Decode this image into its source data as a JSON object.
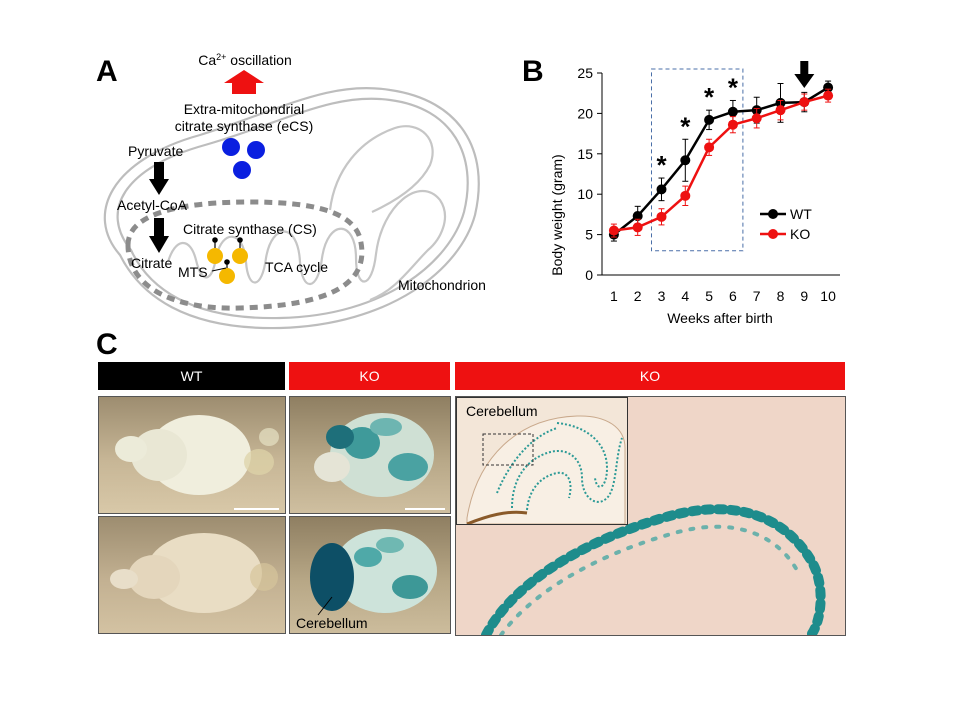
{
  "panels": {
    "a": "A",
    "b": "B",
    "c": "C"
  },
  "diagram": {
    "ca_prefix": "Ca",
    "ca_sup": "2+",
    "ca_suffix": " oscillation",
    "ecs_line1": "Extra-mitochondrial",
    "ecs_line2": "citrate synthase (eCS)",
    "pyruvate": "Pyruvate",
    "acetyl_coa": "Acetyl-CoA",
    "citrate": "Citrate",
    "cs": "Citrate synthase  (CS)",
    "mts": "MTS",
    "tca": "TCA cycle",
    "mitochondrion": "Mitochondrion",
    "colors": {
      "arrow_up": "#ee1111",
      "ecs_dots": "#0a1fe0",
      "cs_dots": "#f5b800",
      "outline": "#bdbdbd"
    }
  },
  "chart_data": {
    "type": "line",
    "xlabel": "Weeks after birth",
    "ylabel": "Body weight (gram)",
    "categories": [
      "1",
      "2",
      "3",
      "4",
      "5",
      "6",
      "7",
      "8",
      "9",
      "10"
    ],
    "ylim": [
      0,
      25
    ],
    "yticks": [
      "0",
      "5",
      "10",
      "15",
      "20",
      "25"
    ],
    "series": [
      {
        "name": "WT",
        "color": "#000000",
        "values": [
          5.0,
          7.3,
          10.6,
          14.2,
          19.2,
          20.2,
          20.4,
          21.3,
          21.4,
          23.2
        ],
        "errors": [
          0.8,
          1.2,
          1.4,
          2.6,
          1.2,
          1.4,
          1.6,
          2.4,
          1.2,
          0.8
        ]
      },
      {
        "name": "KO",
        "color": "#ee1111",
        "values": [
          5.5,
          5.9,
          7.2,
          9.8,
          15.8,
          18.6,
          19.4,
          20.4,
          21.4,
          22.2
        ],
        "errors": [
          0.8,
          1.0,
          1.0,
          1.2,
          1.0,
          1.0,
          1.2,
          1.2,
          1.0,
          0.8
        ]
      }
    ],
    "significance": {
      "marker": "*",
      "weeks": [
        "3",
        "4",
        "5",
        "6"
      ]
    },
    "arrow_week": "9",
    "highlight_weeks": [
      "3",
      "6"
    ],
    "legend_position": "right",
    "grid": false
  },
  "panel_c": {
    "wt_label": "WT",
    "ko_label_1": "KO",
    "ko_label_2": "KO",
    "cerebellum_label": "Cerebellum",
    "inset_label": "Cerebellum",
    "colors": {
      "wt_banner": "#000000",
      "ko_banner": "#ee1111",
      "stain": "#1e8c8c"
    }
  }
}
